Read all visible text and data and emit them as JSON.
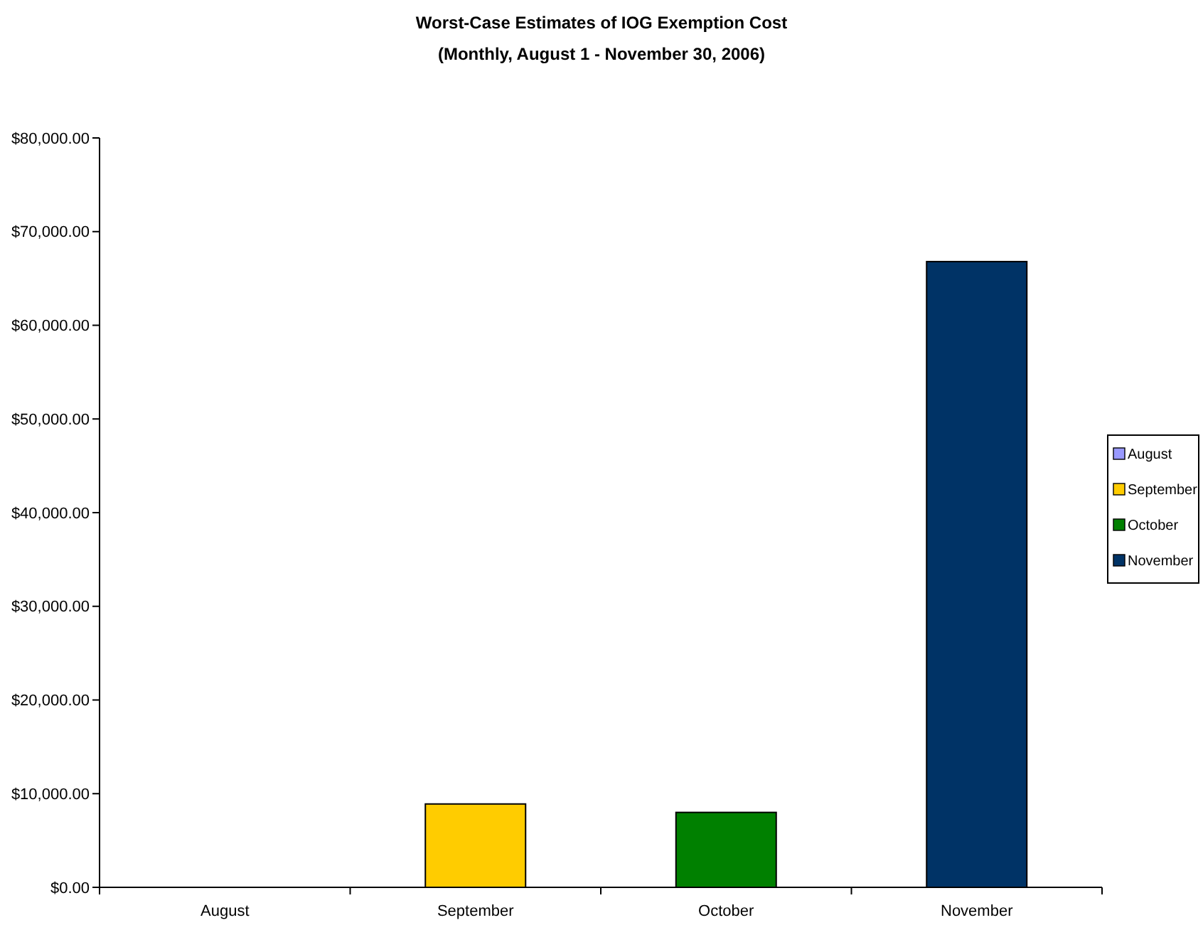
{
  "chart_data": {
    "type": "bar",
    "title": "Worst-Case Estimates of IOG Exemption Cost",
    "subtitle": "(Monthly, August 1 - November 30, 2006)",
    "categories": [
      "August",
      "September",
      "October",
      "November"
    ],
    "series": [
      {
        "name": "August",
        "color": "#9999ff",
        "values": [
          0,
          null,
          null,
          null
        ]
      },
      {
        "name": "September",
        "color": "#ffcc00",
        "values": [
          null,
          8900,
          null,
          null
        ]
      },
      {
        "name": "October",
        "color": "#008000",
        "values": [
          null,
          null,
          8000,
          null
        ]
      },
      {
        "name": "November",
        "color": "#003366",
        "values": [
          null,
          null,
          null,
          66800
        ]
      }
    ],
    "ylim": [
      0,
      80000
    ],
    "yticks": [
      {
        "value": 0,
        "label": "$0.00"
      },
      {
        "value": 10000,
        "label": "$10,000.00"
      },
      {
        "value": 20000,
        "label": "$20,000.00"
      },
      {
        "value": 30000,
        "label": "$30,000.00"
      },
      {
        "value": 40000,
        "label": "$40,000.00"
      },
      {
        "value": 50000,
        "label": "$50,000.00"
      },
      {
        "value": 60000,
        "label": "$60,000.00"
      },
      {
        "value": 70000,
        "label": "$70,000.00"
      },
      {
        "value": 80000,
        "label": "$80,000.00"
      }
    ],
    "grid": false,
    "legend": "right"
  }
}
